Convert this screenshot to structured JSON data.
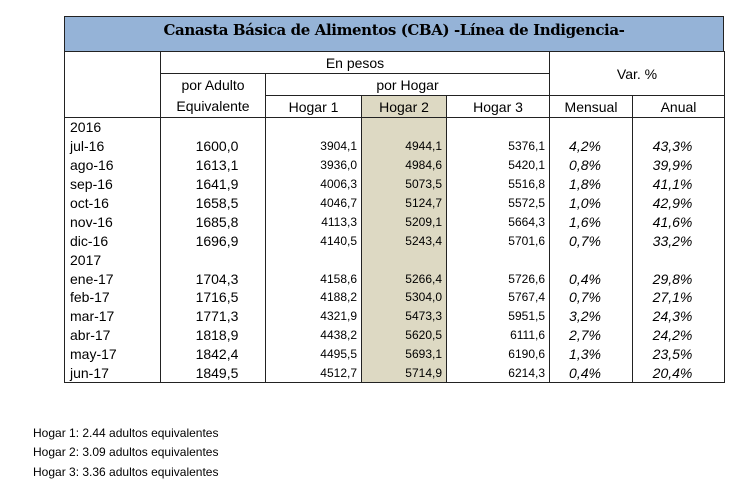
{
  "title": "Canasta Básica de Alimentos (CBA) -Línea de Indigencia-",
  "headers": {
    "en_pesos": "En pesos",
    "var": "Var. %",
    "por_adulto": "por Adulto",
    "equivalente": "Equivalente",
    "por_hogar": "por Hogar",
    "hogar1": "Hogar 1",
    "hogar2": "Hogar 2",
    "hogar3": "Hogar 3",
    "mensual": "Mensual",
    "anual": "Anual"
  },
  "rows": [
    {
      "year": "2016"
    },
    {
      "mes": "jul-16",
      "adulto": "1600,0",
      "h1": "3904,1",
      "h2": "4944,1",
      "h3": "5376,1",
      "mensual": "4,2%",
      "anual": "43,3%"
    },
    {
      "mes": "ago-16",
      "adulto": "1613,1",
      "h1": "3936,0",
      "h2": "4984,6",
      "h3": "5420,1",
      "mensual": "0,8%",
      "anual": "39,9%"
    },
    {
      "mes": "sep-16",
      "adulto": "1641,9",
      "h1": "4006,3",
      "h2": "5073,5",
      "h3": "5516,8",
      "mensual": "1,8%",
      "anual": "41,1%"
    },
    {
      "mes": "oct-16",
      "adulto": "1658,5",
      "h1": "4046,7",
      "h2": "5124,7",
      "h3": "5572,5",
      "mensual": "1,0%",
      "anual": "42,9%"
    },
    {
      "mes": "nov-16",
      "adulto": "1685,8",
      "h1": "4113,3",
      "h2": "5209,1",
      "h3": "5664,3",
      "mensual": "1,6%",
      "anual": "41,6%"
    },
    {
      "mes": "dic-16",
      "adulto": "1696,9",
      "h1": "4140,5",
      "h2": "5243,4",
      "h3": "5701,6",
      "mensual": "0,7%",
      "anual": "33,2%"
    },
    {
      "year": "2017"
    },
    {
      "mes": "ene-17",
      "adulto": "1704,3",
      "h1": "4158,6",
      "h2": "5266,4",
      "h3": "5726,6",
      "mensual": "0,4%",
      "anual": "29,8%"
    },
    {
      "mes": "feb-17",
      "adulto": "1716,5",
      "h1": "4188,2",
      "h2": "5304,0",
      "h3": "5767,4",
      "mensual": "0,7%",
      "anual": "27,1%"
    },
    {
      "mes": "mar-17",
      "adulto": "1771,3",
      "h1": "4321,9",
      "h2": "5473,3",
      "h3": "5951,5",
      "mensual": "3,2%",
      "anual": "24,3%"
    },
    {
      "mes": "abr-17",
      "adulto": "1818,9",
      "h1": "4438,2",
      "h2": "5620,5",
      "h3": "6111,6",
      "mensual": "2,7%",
      "anual": "24,2%"
    },
    {
      "mes": "may-17",
      "adulto": "1842,4",
      "h1": "4495,5",
      "h2": "5693,1",
      "h3": "6190,6",
      "mensual": "1,3%",
      "anual": "23,5%"
    },
    {
      "mes": "jun-17",
      "adulto": "1849,5",
      "h1": "4512,7",
      "h2": "5714,9",
      "h3": "6214,3",
      "mensual": "0,4%",
      "anual": "20,4%"
    }
  ],
  "footnotes": [
    "Hogar 1: 2.44 adultos equivalentes",
    "Hogar 2: 3.09 adultos equivalentes",
    "Hogar 3: 3.36 adultos equivalentes"
  ]
}
